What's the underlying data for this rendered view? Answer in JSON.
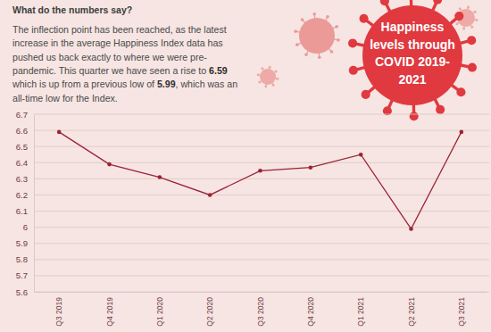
{
  "header": {
    "heading": "What do the numbers say?",
    "paragraph": [
      [
        "The inflection point has been reached, as the latest"
      ],
      [
        "increase in the average Happiness Index data has"
      ],
      [
        "pushed us back exactly to where we were pre-"
      ],
      [
        "pandemic. This quarter we have seen a rise to ",
        "6.59"
      ],
      [
        "which is up from a previous low of ",
        "5.99",
        ", which was an"
      ],
      [
        "all-time low for the Index."
      ]
    ]
  },
  "chart_data": {
    "type": "line",
    "title": [
      "Happiness",
      "levels through",
      "COVID 2019-",
      "2021"
    ],
    "categories": [
      "Q3 2019",
      "Q4 2019",
      "Q1 2020",
      "Q2 2020",
      "Q3 2020",
      "Q4 2020",
      "Q1 2021",
      "Q2 2021",
      "Q3 2021"
    ],
    "values": [
      6.59,
      6.39,
      6.31,
      6.2,
      6.35,
      6.37,
      6.45,
      5.99,
      6.59
    ],
    "color": "#9b2335",
    "marker": "circle",
    "ylim": [
      5.6,
      6.7
    ],
    "yticks": [
      5.6,
      5.7,
      5.8,
      5.9,
      6,
      6.1,
      6.2,
      6.3,
      6.4,
      6.5,
      6.6,
      6.7
    ],
    "grid": true
  }
}
